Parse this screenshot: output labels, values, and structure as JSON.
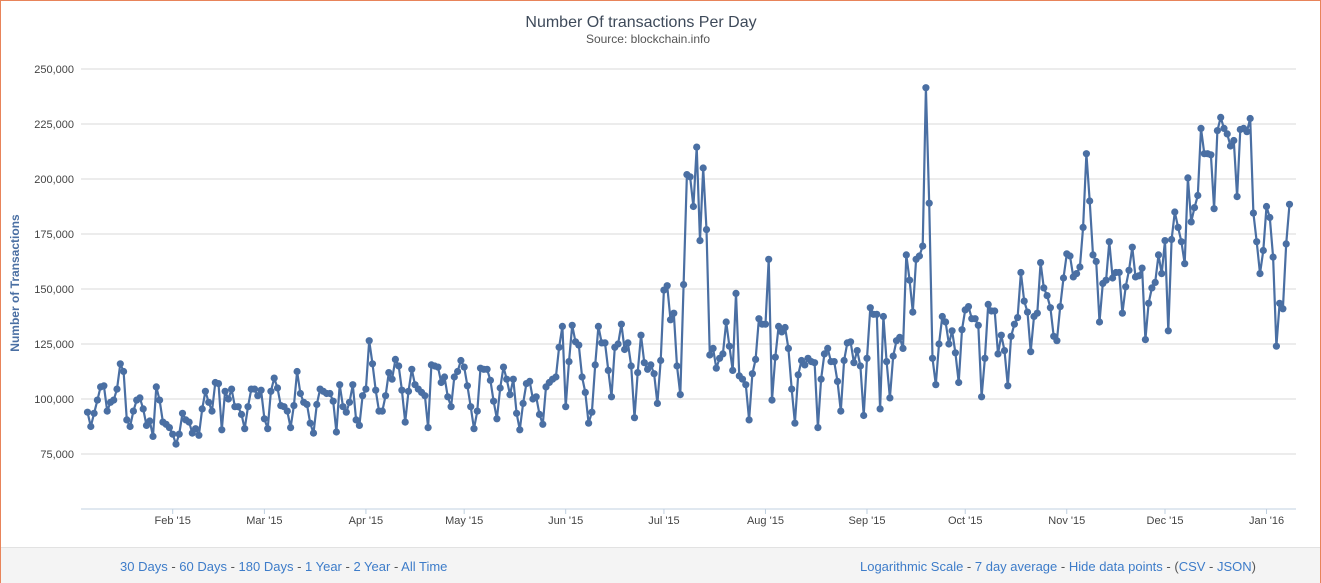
{
  "colors": {
    "line": "#4a6fa3",
    "grid": "#d8d8d8",
    "axis_text": "#444444",
    "title": "#3e4a5a",
    "link": "#3d7cc9",
    "border": "#e8845a"
  },
  "chart_data": {
    "type": "line",
    "title": "Number Of transactions Per Day",
    "subtitle": "Source: blockchain.info",
    "ylabel": "Number of Transactions",
    "xlabel": "",
    "ylim": [
      50000,
      255000
    ],
    "yticks": [
      75000,
      100000,
      125000,
      150000,
      175000,
      200000,
      225000,
      250000
    ],
    "ytick_labels": [
      "75,000",
      "100,000",
      "125,000",
      "150,000",
      "175,000",
      "200,000",
      "225,000",
      "250,000"
    ],
    "x_start": "2015-01-04",
    "x_end": "2016-01-10",
    "xticks": [
      {
        "date": "2015-02-01",
        "label": "Feb '15"
      },
      {
        "date": "2015-03-01",
        "label": "Mar '15"
      },
      {
        "date": "2015-04-01",
        "label": "Apr '15"
      },
      {
        "date": "2015-05-01",
        "label": "May '15"
      },
      {
        "date": "2015-06-01",
        "label": "Jun '15"
      },
      {
        "date": "2015-07-01",
        "label": "Jul '15"
      },
      {
        "date": "2015-08-01",
        "label": "Aug '15"
      },
      {
        "date": "2015-09-01",
        "label": "Sep '15"
      },
      {
        "date": "2015-10-01",
        "label": "Oct '15"
      },
      {
        "date": "2015-11-01",
        "label": "Nov '15"
      },
      {
        "date": "2015-12-01",
        "label": "Dec '15"
      },
      {
        "date": "2016-01-01",
        "label": "Jan '16"
      }
    ],
    "grid": true,
    "legend": "none",
    "series": [
      {
        "start_date": "2015-01-06",
        "values": [
          94000,
          87500,
          93500,
          99500,
          105500,
          106000,
          94500,
          98500,
          99500,
          104500,
          116000,
          112500,
          90500,
          87500,
          94500,
          99500,
          100500,
          95500,
          88000,
          90000,
          83000,
          105500,
          99500,
          89500,
          88500,
          87000,
          84000,
          79500,
          84000,
          93500,
          90500,
          89500,
          84500,
          86500,
          83500,
          95500,
          103500,
          98500,
          94500,
          107500,
          107000,
          86000,
          103500,
          100000,
          104500,
          96500,
          96500,
          93000,
          86500,
          96500,
          104500,
          104500,
          101500,
          104000,
          91000,
          86500,
          103500,
          109500,
          105000,
          97000,
          96500,
          94500,
          87000,
          97000,
          112500,
          102500,
          98500,
          97500,
          89000,
          84500,
          97500,
          104500,
          103500,
          102500,
          102500,
          99000,
          85000,
          106500,
          96500,
          94000,
          98500,
          106500,
          90500,
          88000,
          101500,
          104500,
          126500,
          116000,
          104000,
          94500,
          94500,
          101500,
          112000,
          109000,
          118000,
          115000,
          104000,
          89500,
          103500,
          113500,
          106500,
          104500,
          103000,
          101500,
          87000,
          115500,
          115000,
          114500,
          107500,
          110000,
          101000,
          96500,
          110000,
          112500,
          117500,
          114500,
          106000,
          96500,
          86500,
          94500,
          114000,
          113500,
          113500,
          108500,
          99000,
          91000,
          105000,
          114500,
          109000,
          102000,
          109000,
          93500,
          86000,
          98000,
          107000,
          108000,
          100000,
          101000,
          93000,
          88500,
          105500,
          107500,
          109000,
          110000,
          123500,
          133000,
          96500,
          117000,
          133500,
          126000,
          124500,
          110000,
          103000,
          89000,
          94000,
          115500,
          133000,
          125500,
          125500,
          113000,
          101000,
          123500,
          125000,
          134000,
          122500,
          125500,
          115000,
          91500,
          112000,
          129000,
          116500,
          113500,
          115500,
          111500,
          98000,
          117500,
          149500,
          151500,
          136000,
          139000,
          115000,
          102000,
          152000,
          202000,
          201000,
          187500,
          214500,
          172000,
          205000,
          177000,
          120000,
          123000,
          114000,
          118500,
          120500,
          135000,
          124000,
          113000,
          148000,
          110500,
          109000,
          106500,
          90500,
          111500,
          118000,
          136500,
          134000,
          134000,
          163500,
          99500,
          119000,
          133000,
          130500,
          132500,
          123000,
          104500,
          89000,
          111000,
          117500,
          115500,
          118500,
          117000,
          116500,
          87000,
          109000,
          120500,
          123000,
          117000,
          117000,
          108000,
          94500,
          117500,
          125500,
          126000,
          116500,
          122000,
          115000,
          92500,
          118500,
          141500,
          138500,
          138500,
          95500,
          137500,
          117000,
          100500,
          119500,
          126500,
          128000,
          123000,
          165500,
          154000,
          139500,
          163500,
          165000,
          169500,
          241500,
          189000,
          118500,
          106500,
          125000,
          137500,
          135000,
          125000,
          131000,
          121000,
          107500,
          131500,
          140500,
          142000,
          136500,
          136500,
          133500,
          101000,
          118500,
          143000,
          140000,
          140000,
          120500,
          129000,
          122000,
          106000,
          128500,
          134000,
          137000,
          157500,
          144500,
          139500,
          121500,
          137500,
          139000,
          162000,
          150500,
          147000,
          141500,
          128500,
          126500,
          142000,
          155000,
          166000,
          165000,
          155500,
          157000,
          160000,
          178000,
          211500,
          190000,
          165500,
          162500,
          135000,
          152500,
          154000,
          171500,
          155000,
          157500,
          157500,
          139000,
          151000,
          158500,
          169000,
          155500,
          156000,
          159500,
          127000,
          143500,
          150500,
          153000,
          165500,
          157000,
          172000,
          131000,
          172500,
          185000,
          178000,
          171500,
          161500,
          200500,
          180500,
          187000,
          192500,
          223000,
          211500,
          211500,
          211000,
          186500,
          222000,
          228000,
          223000,
          220500,
          215000,
          217500,
          192000,
          222500,
          223000,
          221500,
          227500,
          184500,
          171500,
          157000,
          167500,
          187500,
          182500,
          164500,
          124000,
          143500,
          141000,
          170500,
          188500
        ]
      }
    ]
  },
  "footer": {
    "left_links": [
      "30 Days",
      "60 Days",
      "180 Days",
      "1 Year",
      "2 Year",
      "All Time"
    ],
    "right_links": [
      "Logarithmic Scale",
      "7 day average",
      "Hide data points",
      "CSV",
      "JSON"
    ]
  }
}
